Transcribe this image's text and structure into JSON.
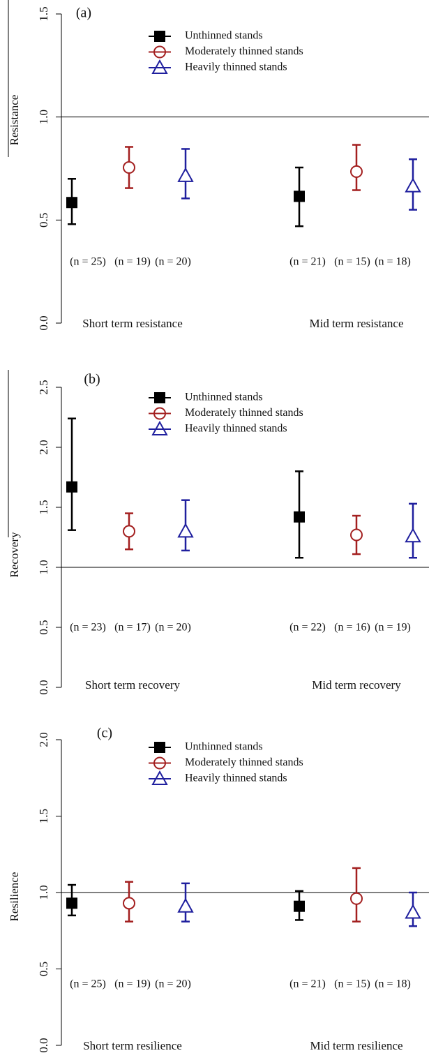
{
  "chart_data": [
    {
      "type": "errorbar",
      "panel_label": "(a)",
      "y_label": "Resistance",
      "categories": [
        "Short term resistance",
        "Mid term resistance"
      ],
      "ylim": [
        0,
        1.5
      ],
      "yticks": [
        {
          "value": 0,
          "label": "0.0"
        },
        0.5,
        {
          "value": 1,
          "label": "1.0"
        },
        1.5
      ],
      "hline": 1,
      "series": [
        {
          "name": "Unthinned stands",
          "color": "#000000",
          "marker": "square",
          "values": [
            0.585,
            0.615
          ],
          "lower": [
            0.48,
            0.47
          ],
          "upper": [
            0.7,
            0.755
          ],
          "n_labels": [
            "(n = 25)",
            "(n = 21)"
          ]
        },
        {
          "name": "Moderately thinned stands",
          "color": "#a31f1f",
          "marker": "circle",
          "values": [
            0.755,
            0.735
          ],
          "lower": [
            0.655,
            0.645
          ],
          "upper": [
            0.855,
            0.865
          ],
          "n_labels": [
            "(n = 19)",
            "(n = 15)"
          ]
        },
        {
          "name": "Heavily thinned stands",
          "color": "#1f1f9e",
          "marker": "triangle",
          "values": [
            0.715,
            0.665
          ],
          "lower": [
            0.605,
            0.55
          ],
          "upper": [
            0.845,
            0.795
          ],
          "n_labels": [
            "(n = 20)",
            "(n = 18)"
          ]
        }
      ]
    },
    {
      "type": "errorbar",
      "panel_label": "(b)",
      "y_label": "Recovery",
      "categories": [
        "Short term recovery",
        "Mid term recovery"
      ],
      "ylim": [
        0,
        2.5
      ],
      "yticks": [
        {
          "value": 0,
          "label": "0.0"
        },
        0.5,
        {
          "value": 1,
          "label": "1.0"
        },
        1.5,
        {
          "value": 2,
          "label": "2.0"
        },
        2.5
      ],
      "hline": 1,
      "series": [
        {
          "name": "Unthinned stands",
          "color": "#000000",
          "marker": "square",
          "values": [
            1.67,
            1.42
          ],
          "lower": [
            1.31,
            1.08
          ],
          "upper": [
            2.24,
            1.8
          ],
          "n_labels": [
            "(n = 23)",
            "(n = 22)"
          ]
        },
        {
          "name": "Moderately thinned stands",
          "color": "#a31f1f",
          "marker": "circle",
          "values": [
            1.3,
            1.27
          ],
          "lower": [
            1.15,
            1.11
          ],
          "upper": [
            1.45,
            1.43
          ],
          "n_labels": [
            "(n = 17)",
            "(n = 16)"
          ]
        },
        {
          "name": "Heavily thinned stands",
          "color": "#1f1f9e",
          "marker": "triangle",
          "values": [
            1.3,
            1.26
          ],
          "lower": [
            1.14,
            1.08
          ],
          "upper": [
            1.56,
            1.53
          ],
          "n_labels": [
            "(n = 20)",
            "(n = 19)"
          ]
        }
      ]
    },
    {
      "type": "errorbar",
      "panel_label": "(c)",
      "y_label": "Resilience",
      "categories": [
        "Short term resilience",
        "Mid term resilience"
      ],
      "ylim": [
        0,
        2
      ],
      "yticks": [
        {
          "value": 0,
          "label": "0.0"
        },
        0.5,
        {
          "value": 1,
          "label": "1.0"
        },
        1.5,
        {
          "value": 2,
          "label": "2.0"
        }
      ],
      "hline": 1,
      "series": [
        {
          "name": "Unthinned stands",
          "color": "#000000",
          "marker": "square",
          "values": [
            0.93,
            0.91
          ],
          "lower": [
            0.85,
            0.82
          ],
          "upper": [
            1.05,
            1.01
          ],
          "n_labels": [
            "(n = 25)",
            "(n = 21)"
          ]
        },
        {
          "name": "Moderately thinned stands",
          "color": "#a31f1f",
          "marker": "circle",
          "values": [
            0.93,
            0.96
          ],
          "lower": [
            0.81,
            0.81
          ],
          "upper": [
            1.07,
            1.16
          ],
          "n_labels": [
            "(n = 19)",
            "(n = 15)"
          ]
        },
        {
          "name": "Heavily thinned stands",
          "color": "#1f1f9e",
          "marker": "triangle",
          "values": [
            0.91,
            0.87
          ],
          "lower": [
            0.81,
            0.78
          ],
          "upper": [
            1.06,
            1.0
          ],
          "n_labels": [
            "(n = 20)",
            "(n = 18)"
          ]
        }
      ]
    }
  ]
}
